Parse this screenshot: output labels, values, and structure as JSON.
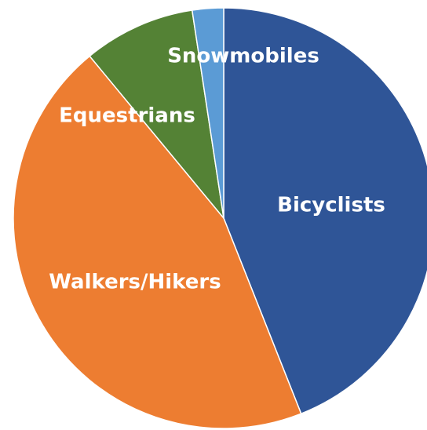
{
  "chart_data": {
    "type": "pie",
    "categories": [
      "Bicyclists",
      "Walkers/Hikers",
      "Equestrians",
      "Snowmobiles"
    ],
    "values": [
      44,
      45,
      8.6,
      2.4
    ],
    "colors": [
      "#2f5597",
      "#ed7d31",
      "#548235",
      "#5b9bd5"
    ]
  }
}
